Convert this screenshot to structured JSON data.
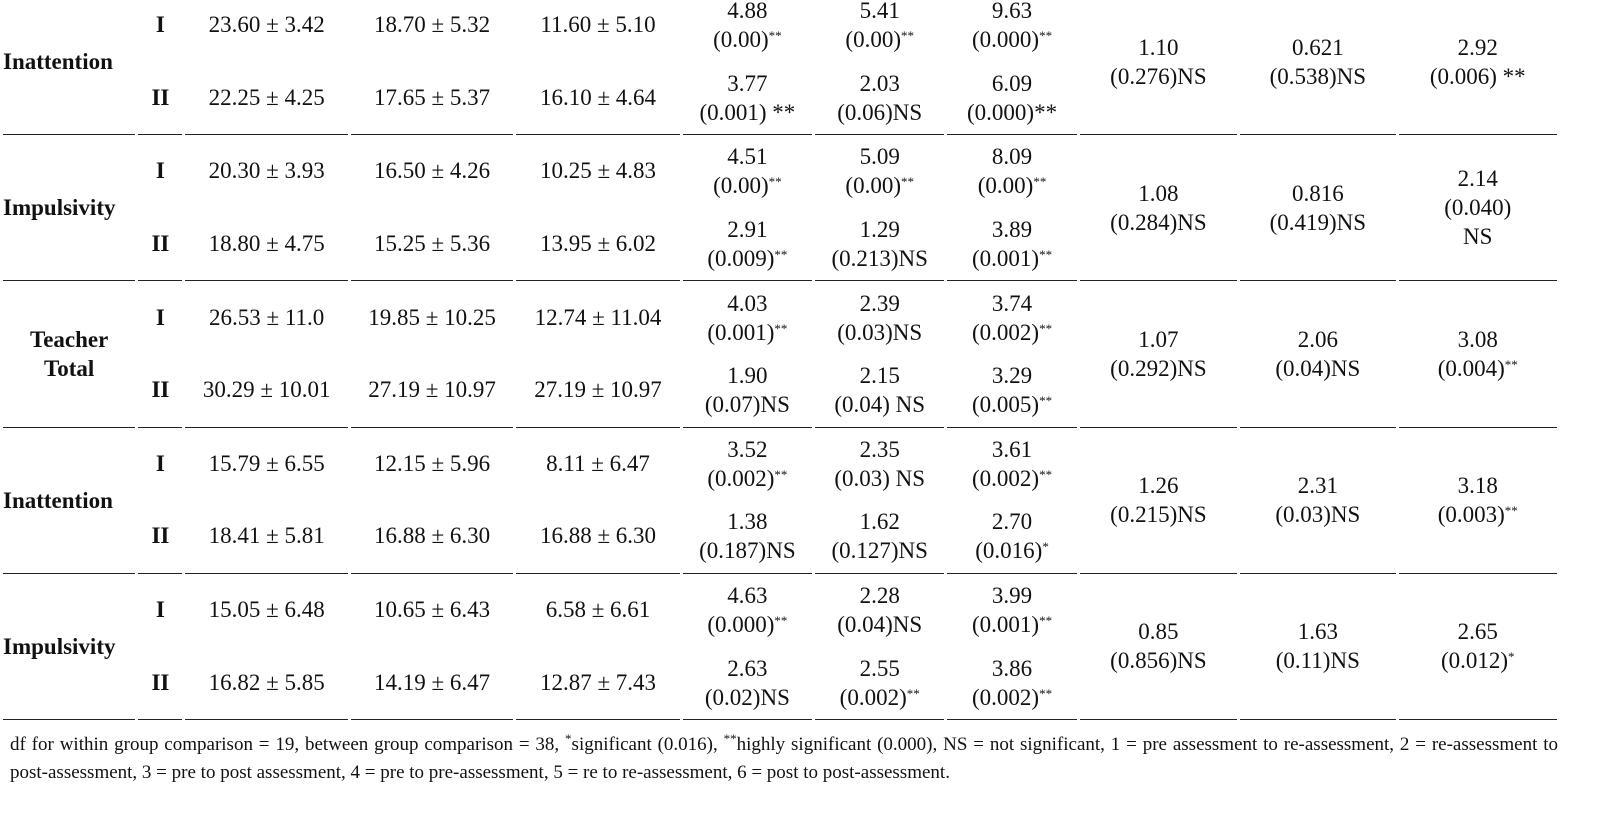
{
  "table": {
    "groups": [
      {
        "label": [
          "Inattention"
        ],
        "between": [
          {
            "lines": [
              "1.10",
              "(0.276)NS"
            ]
          },
          {
            "lines": [
              "0.621",
              "(0.538)NS"
            ]
          },
          {
            "lines": [
              "2.92",
              "(0.006) **"
            ]
          }
        ],
        "rows": [
          {
            "group": "I",
            "means": [
              "23.60 ± 3.42",
              "18.70 ± 5.32",
              "11.60 ± 5.10"
            ],
            "tests": [
              {
                "lines": [
                  "4.88",
                  "(0.00)"
                ],
                "sup": "**"
              },
              {
                "lines": [
                  "5.41",
                  "(0.00)"
                ],
                "sup": "**"
              },
              {
                "lines": [
                  "9.63",
                  "(0.000)"
                ],
                "sup": "**"
              }
            ]
          },
          {
            "group": "II",
            "means": [
              "22.25 ± 4.25",
              "17.65 ± 5.37",
              "16.10 ± 4.64"
            ],
            "tests": [
              {
                "lines": [
                  "3.77",
                  "(0.001) **"
                ]
              },
              {
                "lines": [
                  "2.03",
                  "(0.06)NS"
                ]
              },
              {
                "lines": [
                  "6.09",
                  "(0.000)**"
                ]
              }
            ]
          }
        ]
      },
      {
        "label": [
          "Impulsivity"
        ],
        "between": [
          {
            "lines": [
              "1.08",
              "(0.284)NS"
            ]
          },
          {
            "lines": [
              "0.816",
              "(0.419)NS"
            ]
          },
          {
            "lines": [
              "2.14",
              "(0.040)",
              "NS"
            ]
          }
        ],
        "rows": [
          {
            "group": "I",
            "means": [
              "20.30 ± 3.93",
              "16.50 ± 4.26",
              "10.25 ± 4.83"
            ],
            "tests": [
              {
                "lines": [
                  "4.51",
                  "(0.00)"
                ],
                "sup": "**"
              },
              {
                "lines": [
                  "5.09",
                  "(0.00)"
                ],
                "sup": "**"
              },
              {
                "lines": [
                  "8.09",
                  "(0.00)"
                ],
                "sup": "**"
              }
            ]
          },
          {
            "group": "II",
            "means": [
              "18.80 ± 4.75",
              "15.25 ± 5.36",
              "13.95 ± 6.02"
            ],
            "tests": [
              {
                "lines": [
                  "2.91",
                  "(0.009)"
                ],
                "sup": "**"
              },
              {
                "lines": [
                  "1.29",
                  "(0.213)NS"
                ]
              },
              {
                "lines": [
                  "3.89",
                  "(0.001)"
                ],
                "sup": "**"
              }
            ]
          }
        ]
      },
      {
        "label": [
          "Teacher",
          "Total"
        ],
        "between": [
          {
            "lines": [
              "1.07",
              "(0.292)NS"
            ]
          },
          {
            "lines": [
              "2.06",
              "(0.04)NS"
            ]
          },
          {
            "lines": [
              "3.08",
              "(0.004)"
            ],
            "sup": "**"
          }
        ],
        "rows": [
          {
            "group": "I",
            "means": [
              "26.53 ± 11.0",
              "19.85 ± 10.25",
              "12.74 ± 11.04"
            ],
            "tests": [
              {
                "lines": [
                  "4.03",
                  "(0.001)"
                ],
                "sup": "**"
              },
              {
                "lines": [
                  "2.39",
                  "(0.03)NS"
                ]
              },
              {
                "lines": [
                  "3.74",
                  "(0.002)"
                ],
                "sup": "**"
              }
            ]
          },
          {
            "group": "II",
            "means": [
              "30.29 ± 10.01",
              "27.19 ± 10.97",
              "27.19 ± 10.97"
            ],
            "tests": [
              {
                "lines": [
                  "1.90",
                  "(0.07)NS"
                ]
              },
              {
                "lines": [
                  "2.15",
                  "(0.04) NS"
                ]
              },
              {
                "lines": [
                  "3.29",
                  "(0.005)"
                ],
                "sup": "**"
              }
            ]
          }
        ]
      },
      {
        "label": [
          "Inattention"
        ],
        "between": [
          {
            "lines": [
              "1.26",
              "(0.215)NS"
            ]
          },
          {
            "lines": [
              "2.31",
              "(0.03)NS"
            ]
          },
          {
            "lines": [
              "3.18",
              "(0.003)"
            ],
            "sup": "**"
          }
        ],
        "rows": [
          {
            "group": "I",
            "means": [
              "15.79 ± 6.55",
              "12.15 ± 5.96",
              "8.11 ± 6.47"
            ],
            "tests": [
              {
                "lines": [
                  "3.52",
                  "(0.002)"
                ],
                "sup": "**"
              },
              {
                "lines": [
                  "2.35",
                  "(0.03) NS"
                ]
              },
              {
                "lines": [
                  "3.61",
                  "(0.002)"
                ],
                "sup": "**"
              }
            ]
          },
          {
            "group": "II",
            "means": [
              "18.41 ± 5.81",
              "16.88 ± 6.30",
              "16.88 ± 6.30"
            ],
            "tests": [
              {
                "lines": [
                  "1.38",
                  "(0.187)NS"
                ]
              },
              {
                "lines": [
                  "1.62",
                  "(0.127)NS"
                ]
              },
              {
                "lines": [
                  "2.70",
                  "(0.016)"
                ],
                "sup": "*"
              }
            ]
          }
        ]
      },
      {
        "label": [
          "Impulsivity"
        ],
        "between": [
          {
            "lines": [
              "0.85",
              "(0.856)NS"
            ]
          },
          {
            "lines": [
              "1.63",
              "(0.11)NS"
            ]
          },
          {
            "lines": [
              "2.65",
              "(0.012)"
            ],
            "sup": "*"
          }
        ],
        "rows": [
          {
            "group": "I",
            "means": [
              "15.05 ± 6.48",
              "10.65 ± 6.43",
              "6.58 ± 6.61"
            ],
            "tests": [
              {
                "lines": [
                  "4.63",
                  "(0.000)"
                ],
                "sup": "**"
              },
              {
                "lines": [
                  "2.28",
                  "(0.04)NS"
                ]
              },
              {
                "lines": [
                  "3.99",
                  "(0.001)"
                ],
                "sup": "**"
              }
            ]
          },
          {
            "group": "II",
            "means": [
              "16.82 ± 5.85",
              "14.19 ± 6.47",
              "12.87 ± 7.43"
            ],
            "tests": [
              {
                "lines": [
                  "2.63",
                  "(0.02)NS"
                ]
              },
              {
                "lines": [
                  "2.55",
                  "(0.002)"
                ],
                "sup": "**"
              },
              {
                "lines": [
                  "3.86",
                  "(0.002)"
                ],
                "sup": "**"
              }
            ]
          }
        ]
      }
    ]
  },
  "footnote": [
    {
      "text": "df for within group comparison = 19, between group comparison = 38, "
    },
    {
      "sup": "*"
    },
    {
      "text": "significant (0.016), "
    },
    {
      "sup": "**"
    },
    {
      "text": "highly significant (0.000), NS = not significant, 1 = pre assessment to re-assessment, 2 = re-assessment to post-assessment, 3 = pre to post assessment, 4 = pre to pre-assessment, 5 = re to re-assessment, 6 = post to post-assessment."
    }
  ]
}
